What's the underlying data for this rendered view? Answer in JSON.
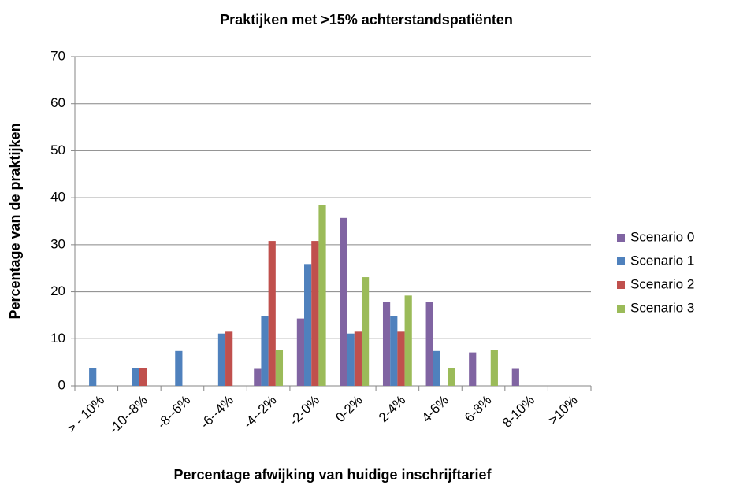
{
  "chart_data": {
    "type": "bar",
    "title": "Praktijken met >15% achterstandspatiënten",
    "xlabel": "Percentage afwijking van huidige inschrijftarief",
    "ylabel": "Percentage van de praktijken",
    "categories": [
      "> - 10%",
      "-10--8%",
      "-8--6%",
      "-6--4%",
      "-4--2%",
      "-2-0%",
      "0-2%",
      "2-4%",
      "4-6%",
      "6-8%",
      "8-10%",
      ">10%"
    ],
    "series": [
      {
        "name": "Scenario 0",
        "color": "#8064A2",
        "values": [
          0,
          0,
          0,
          0,
          3.6,
          14.3,
          35.7,
          17.9,
          17.9,
          7.1,
          3.6,
          0
        ]
      },
      {
        "name": "Scenario 1",
        "color": "#4F81BD",
        "values": [
          3.7,
          3.7,
          7.4,
          11.1,
          14.8,
          25.9,
          11.1,
          14.8,
          7.4,
          0,
          0,
          0
        ]
      },
      {
        "name": "Scenario 2",
        "color": "#C0504D",
        "values": [
          0,
          3.8,
          0,
          11.5,
          30.8,
          30.8,
          11.5,
          11.5,
          0,
          0,
          0,
          0
        ]
      },
      {
        "name": "Scenario 3",
        "color": "#9BBB59",
        "values": [
          0,
          0,
          0,
          0,
          7.7,
          38.5,
          23.1,
          19.2,
          3.8,
          7.7,
          0,
          0
        ]
      }
    ],
    "ylim": [
      0,
      70
    ],
    "yticks": [
      0,
      10,
      20,
      30,
      40,
      50,
      60,
      70
    ],
    "grid": true,
    "legend": "right"
  }
}
